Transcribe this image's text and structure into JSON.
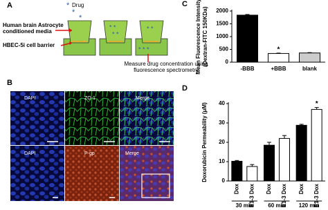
{
  "panel_a": {
    "label": "A",
    "drug": "Drug",
    "media": [
      "Human brain Astrocyte",
      "conditioned media"
    ],
    "barrier": "HBEC-5i cell barrier",
    "measure": [
      "Measure drug concentration using",
      "fluorescence spectrometry"
    ]
  },
  "panel_b": {
    "label": "B",
    "rows": [
      [
        "DAPI",
        "ZO-1",
        "Merge"
      ],
      [
        "DAPI",
        "P-gp",
        "Merge"
      ]
    ]
  },
  "chart_data": [
    {
      "panel_label": "C",
      "type": "bar",
      "y_label": [
        "Mean Fluorescence Intensity",
        "(Dextran-FITC 150KDa)"
      ],
      "categories": [
        "-BBB",
        "+BBB",
        "blank"
      ],
      "values": [
        1840,
        340,
        360
      ],
      "errors": [
        25,
        15,
        15
      ],
      "value_annotations": [
        null,
        "*",
        null
      ],
      "colors": [
        "#000000",
        "#ffffff",
        "#cccccc"
      ],
      "ylim": [
        0,
        2000
      ],
      "yticks": [
        0,
        500,
        1000,
        1500,
        2000
      ]
    },
    {
      "panel_label": "D",
      "type": "grouped_bar",
      "y_label": "Doxorubicin Permeability (μM)",
      "categories": [
        "30 min",
        "60 min",
        "120 min"
      ],
      "series": [
        {
          "name": "Dox",
          "color": "#000000",
          "values": [
            10.2,
            18.5,
            28.8
          ],
          "errors": [
            0.4,
            1.5,
            0.5
          ],
          "value_annotations": [
            null,
            null,
            null
          ]
        },
        {
          "name": "E1-3 Dox",
          "color": "#ffffff",
          "values": [
            7.5,
            22.0,
            37.0
          ],
          "errors": [
            1.0,
            1.5,
            1.0
          ],
          "value_annotations": [
            null,
            null,
            "*"
          ]
        }
      ],
      "ylim": [
        0,
        40
      ],
      "yticks": [
        0,
        10,
        20,
        30,
        40
      ]
    }
  ]
}
